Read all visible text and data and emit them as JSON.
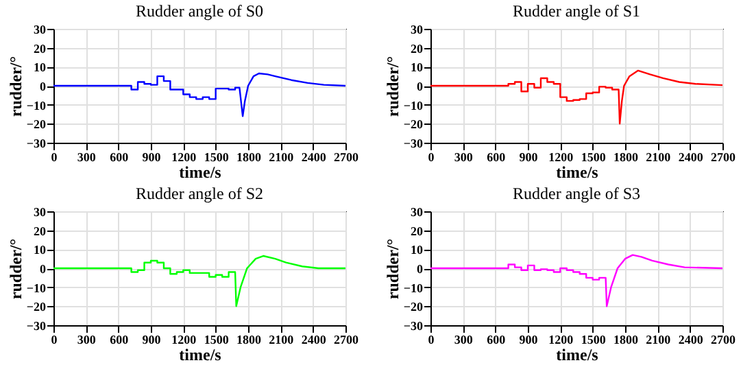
{
  "chart_data": [
    {
      "type": "line",
      "title": "Rudder angle of S0",
      "xlabel": "time/s",
      "ylabel": "rudder/°",
      "xlim": [
        0,
        2700
      ],
      "ylim": [
        -30,
        30
      ],
      "xticks": [
        0,
        300,
        600,
        900,
        1200,
        1500,
        1800,
        2100,
        2400,
        2700
      ],
      "yticks": [
        -30,
        -20,
        -10,
        0,
        10,
        20,
        30
      ],
      "grid": true,
      "series": [
        {
          "color": "#0000ff",
          "x": [
            0,
            720,
            720,
            780,
            780,
            840,
            840,
            900,
            900,
            960,
            960,
            1020,
            1020,
            1080,
            1080,
            1200,
            1200,
            1260,
            1260,
            1320,
            1320,
            1380,
            1380,
            1440,
            1440,
            1500,
            1500,
            1620,
            1620,
            1680,
            1680,
            1720,
            1750,
            1770,
            1800,
            1850,
            1900,
            1980,
            2050,
            2200,
            2350,
            2500,
            2700
          ],
          "values": [
            0,
            0,
            -2,
            -2,
            2,
            2,
            1,
            1,
            0.5,
            0.5,
            5,
            5,
            2.5,
            2.5,
            -2,
            -2,
            -4.5,
            -4.5,
            -6,
            -6,
            -7,
            -7,
            -6,
            -6,
            -7,
            -7,
            -1.5,
            -1.5,
            -2,
            -2,
            -1,
            -1,
            -16,
            -8,
            0,
            5,
            6.5,
            6,
            5,
            3,
            1.5,
            0.5,
            0
          ]
        }
      ]
    },
    {
      "type": "line",
      "title": "Rudder angle of S1",
      "xlabel": "time/s",
      "ylabel": "rudder/°",
      "xlim": [
        0,
        2700
      ],
      "ylim": [
        -30,
        30
      ],
      "xticks": [
        0,
        300,
        600,
        900,
        1200,
        1500,
        1800,
        2100,
        2400,
        2700
      ],
      "yticks": [
        -30,
        -20,
        -10,
        0,
        10,
        20,
        30
      ],
      "grid": true,
      "series": [
        {
          "color": "#ff0000",
          "x": [
            0,
            720,
            720,
            780,
            780,
            840,
            840,
            900,
            900,
            960,
            960,
            1020,
            1020,
            1080,
            1080,
            1140,
            1140,
            1200,
            1200,
            1260,
            1260,
            1320,
            1320,
            1380,
            1380,
            1440,
            1440,
            1500,
            1500,
            1560,
            1560,
            1620,
            1620,
            1680,
            1680,
            1740,
            1750,
            1770,
            1790,
            1840,
            1920,
            2030,
            2150,
            2300,
            2450,
            2700
          ],
          "values": [
            0,
            0,
            1,
            1,
            2,
            2,
            -3,
            -3,
            1,
            1,
            -1,
            -1,
            4,
            4,
            2,
            2,
            1,
            1,
            -6,
            -6,
            -8,
            -8,
            -7.5,
            -7.5,
            -7,
            -7,
            -4,
            -4,
            -3.5,
            -3.5,
            -0.5,
            -0.5,
            -1,
            -1,
            -2,
            -2,
            -20,
            -8,
            0,
            5,
            8,
            6,
            4,
            2,
            1,
            0.3
          ]
        }
      ]
    },
    {
      "type": "line",
      "title": "Rudder angle of S2",
      "xlabel": "time/s",
      "ylabel": "rudder/°",
      "xlim": [
        0,
        2700
      ],
      "ylim": [
        -30,
        30
      ],
      "xticks": [
        0,
        300,
        600,
        900,
        1200,
        1500,
        1800,
        2100,
        2400,
        2700
      ],
      "yticks": [
        -30,
        -20,
        -10,
        0,
        10,
        20,
        30
      ],
      "grid": true,
      "series": [
        {
          "color": "#00ff00",
          "x": [
            0,
            720,
            720,
            780,
            780,
            840,
            840,
            900,
            900,
            960,
            960,
            1020,
            1020,
            1080,
            1080,
            1140,
            1140,
            1200,
            1200,
            1260,
            1260,
            1440,
            1440,
            1500,
            1500,
            1560,
            1560,
            1620,
            1620,
            1680,
            1690,
            1730,
            1790,
            1870,
            1940,
            2050,
            2150,
            2300,
            2450,
            2700
          ],
          "values": [
            0,
            0,
            -2,
            -2,
            -1,
            -1,
            3,
            3,
            4,
            4,
            3,
            3,
            0,
            0,
            -3,
            -3,
            -2,
            -2,
            -1,
            -1,
            -2.5,
            -2.5,
            -4.5,
            -4.5,
            -3.5,
            -3.5,
            -4.5,
            -4.5,
            -2,
            -2,
            -20,
            -10,
            0,
            5,
            6.5,
            5,
            3,
            1,
            0,
            0
          ]
        }
      ]
    },
    {
      "type": "line",
      "title": "Rudder angle of S3",
      "xlabel": "time/s",
      "ylabel": "rudder/°",
      "xlim": [
        0,
        2700
      ],
      "ylim": [
        -30,
        30
      ],
      "xticks": [
        0,
        300,
        600,
        900,
        1200,
        1500,
        1800,
        2100,
        2400,
        2700
      ],
      "yticks": [
        -30,
        -20,
        -10,
        0,
        10,
        20,
        30
      ],
      "grid": true,
      "series": [
        {
          "color": "#ff00ff",
          "x": [
            0,
            720,
            720,
            780,
            780,
            840,
            840,
            900,
            900,
            960,
            960,
            1020,
            1020,
            1080,
            1080,
            1140,
            1140,
            1200,
            1200,
            1260,
            1260,
            1320,
            1320,
            1380,
            1380,
            1440,
            1440,
            1500,
            1500,
            1560,
            1560,
            1620,
            1630,
            1670,
            1730,
            1800,
            1870,
            1950,
            2050,
            2200,
            2350,
            2700
          ],
          "values": [
            0,
            0,
            2,
            2,
            0.5,
            0.5,
            -1,
            -1,
            1.5,
            1.5,
            -1,
            -1,
            -0.5,
            -0.5,
            -1,
            -1,
            -2,
            -2,
            0,
            0,
            -1,
            -1,
            -2,
            -2,
            -3,
            -3,
            -5,
            -5,
            -6,
            -6,
            -5,
            -5,
            -20,
            -10,
            0,
            5,
            7,
            6,
            4,
            2,
            0.5,
            0
          ]
        }
      ]
    }
  ]
}
